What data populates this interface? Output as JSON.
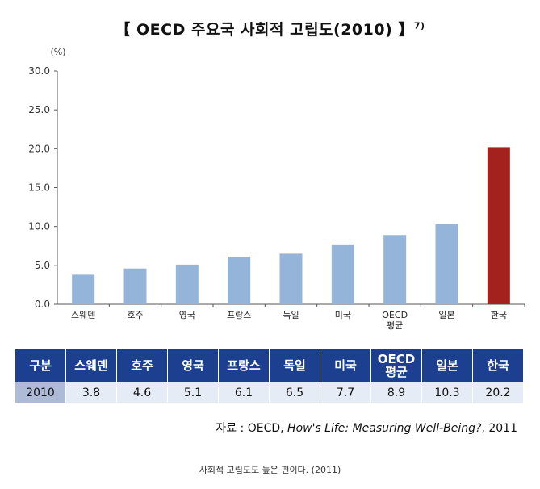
{
  "title": "【 OECD 주요국 사회적 고립도(2010) 】",
  "title_note": "7)",
  "chart_data": {
    "type": "bar",
    "unit": "(%)",
    "categories": [
      "스웨덴",
      "호주",
      "영국",
      "프랑스",
      "독일",
      "미국",
      "OECD 평균",
      "일본",
      "한국"
    ],
    "values": [
      3.8,
      4.6,
      5.1,
      6.1,
      6.5,
      7.7,
      8.9,
      10.3,
      20.2
    ],
    "yticks": [
      "0.0",
      "5.0",
      "10.0",
      "15.0",
      "20.0",
      "25.0",
      "30.0"
    ],
    "ylim": [
      0,
      30
    ],
    "grid": false,
    "bar_color": "#94b4da",
    "highlight_color": "#a3221e",
    "highlight_index": 8
  },
  "table": {
    "header_label": "구분",
    "headers": [
      "스웨덴",
      "호주",
      "영국",
      "프랑스",
      "독일",
      "미국",
      "OECD 평균",
      "일본",
      "한국"
    ],
    "row_label": "2010",
    "row_values": [
      "3.8",
      "4.6",
      "5.1",
      "6.1",
      "6.5",
      "7.7",
      "8.9",
      "10.3",
      "20.2"
    ],
    "header_bg": "#1d3f8f",
    "cell_bg": "#e6ecf5"
  },
  "source": {
    "prefix": "자료 : OECD, ",
    "title": "How's Life: Measuring Well-Being?",
    "suffix": ", 2011"
  },
  "caption": "사회적 고립도도 높은 편이다. (2011)"
}
